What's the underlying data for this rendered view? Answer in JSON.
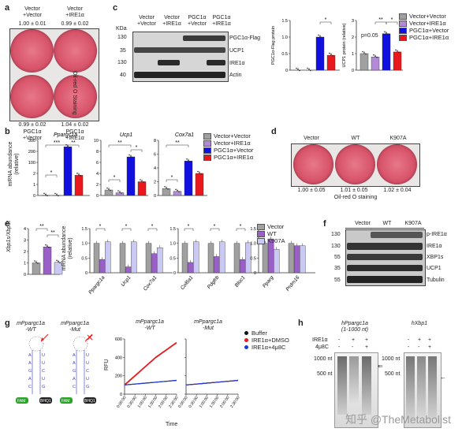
{
  "colors": {
    "vector": "#a0a0a0",
    "ire1": "#b48ad8",
    "pgc1": "#1010e0",
    "pgc1ire1": "#e8181c",
    "wt": "#9b60c8",
    "k907a": "#c9c9f3",
    "buffer": "#111111",
    "dmso": "#e8181c",
    "u4": "#1a3ad8"
  },
  "panel_a": {
    "label": "a",
    "top_groups": [
      "Vector\n+Vector",
      "Vector\n+IRE1α"
    ],
    "top_values": [
      "1.00 ± 0.01",
      "0.99 ± 0.02"
    ],
    "bottom_values": [
      "0.99 ± 0.02",
      "1.04 ± 0.02"
    ],
    "bottom_groups": [
      "PGC1α\n+Vector",
      "PGC1α\n+IRE1α"
    ],
    "side": "Oil-red O Staining"
  },
  "panel_b": {
    "label": "b",
    "ylabel": "mRNA abundance\n(relative)",
    "legend": [
      "Vector+Vector",
      "Vector+IRE1α",
      "PGC1α+Vector",
      "PGC1α+IRE1α"
    ]
  },
  "panel_c": {
    "label": "c",
    "kda": "KDa",
    "lanes": [
      "Vector\n+Vector",
      "Vector\n+IRE1α",
      "PGC1α\n+Vector",
      "PGC1α\n+IRE1α"
    ],
    "mw": [
      "130",
      "35",
      "130",
      "40"
    ],
    "bands": [
      "PGC1α-Flag",
      "UCP1",
      "IRE1α",
      "Actin"
    ],
    "pgc_ylabel": "PGC1α-Flag protein\n(relative)",
    "ucp_ylabel": "UCP1 protein (relative)",
    "pval": "p=0.05",
    "legend": [
      "Vector+Vector",
      "Vector+IRE1α",
      "PGC1α+Vector",
      "PGC1α+IRE1α"
    ]
  },
  "panel_d": {
    "label": "d",
    "groups": [
      "Vector",
      "WT",
      "K907A"
    ],
    "values": [
      "1.00 ± 0.05",
      "1.01 ± 0.05",
      "1.02 ± 0.04"
    ],
    "caption": "Oil-red O staining"
  },
  "panel_e": {
    "label": "e",
    "ylabel1": "Xbp1s/Xbp1t",
    "ylabel2": "mRNA abundance\n(relative)",
    "legend": [
      "Vector",
      "WT",
      "K907A"
    ]
  },
  "panel_f": {
    "label": "f",
    "lanes": [
      "Vector",
      "WT",
      "K907A"
    ],
    "mw": [
      "130",
      "130",
      "55",
      "35",
      "55"
    ],
    "bands": [
      "p-IRE1α",
      "IRE1α",
      "XBP1s",
      "UCP1",
      "Tubulin"
    ]
  },
  "panel_g": {
    "label": "g",
    "probe1": "mPpargc1a\n-WT",
    "probe2": "mPpargc1a\n-Mut",
    "fam": "FAM",
    "bhq": "BHQ1",
    "ylabel": "RFU",
    "xlabel": "Time",
    "title1": "mPpargc1a\n-WT",
    "title2": "mPpargc1a\n-Mut",
    "legend": [
      "Buffer",
      "IRE1α+DMSO",
      "IRE1α+4μ8C"
    ],
    "yticks": [
      "0",
      "200",
      "400",
      "600"
    ],
    "xticks": [
      "0:00:00",
      "0:30:00",
      "1:00:00",
      "1:30:00",
      "2:00:00",
      "2:30:00"
    ]
  },
  "panel_h": {
    "label": "h",
    "title1": "hPpargc1a\n(1-1000 nt)",
    "title2": "hXbp1",
    "row1": "IRE1α",
    "row2": "4μ8C",
    "gel1_signs": [
      [
        "-",
        "+",
        "+"
      ],
      [
        "-",
        "-",
        "+"
      ]
    ],
    "gel2_signs": [
      [
        "-",
        "+",
        "+"
      ],
      [
        "-",
        "-",
        "+"
      ]
    ],
    "markers1": [
      "1000 nt",
      "500 nt"
    ],
    "markers2": [
      "1000 nt",
      "500 nt"
    ]
  },
  "watermark": "知乎 @TheMetabolist",
  "chart_data": [
    {
      "type": "bar",
      "title": "Ppargc1a",
      "categories": [
        "Vector+Vector",
        "Vector+IRE1α",
        "PGC1α+Vector",
        "PGC1α+IRE1α"
      ],
      "values": [
        1,
        0.5,
        265,
        110
      ],
      "ylim": [
        0,
        300
      ],
      "yticks": [
        "0",
        "1",
        "2",
        "100",
        "200",
        "300"
      ]
    },
    {
      "type": "bar",
      "title": "Ucp1",
      "categories": [
        "Vector+Vector",
        "Vector+IRE1α",
        "PGC1α+Vector",
        "PGC1α+IRE1α"
      ],
      "values": [
        1,
        0.5,
        7,
        2.5
      ],
      "ylim": [
        0,
        10
      ],
      "yticks": [
        "0",
        "2",
        "4",
        "6",
        "8",
        "10"
      ]
    },
    {
      "type": "bar",
      "title": "Cox7a1",
      "categories": [
        "Vector+Vector",
        "Vector+IRE1α",
        "PGC1α+Vector",
        "PGC1α+IRE1α"
      ],
      "values": [
        1,
        0.6,
        5,
        3.2
      ],
      "ylim": [
        0,
        8
      ],
      "yticks": [
        "0",
        "2",
        "4",
        "6",
        "8"
      ]
    },
    {
      "type": "bar",
      "title": "",
      "categories": [
        "Vector+Vector",
        "Vector+IRE1α",
        "PGC1α+Vector",
        "PGC1α+IRE1α"
      ],
      "values": [
        0,
        0,
        1,
        0.45
      ],
      "ylim": [
        0,
        1.5
      ],
      "yticks": [
        "0",
        "0.5",
        "1.0",
        "1.5"
      ]
    },
    {
      "type": "bar",
      "title": "",
      "categories": [
        "Vector+Vector",
        "Vector+IRE1α",
        "PGC1α+Vector",
        "PGC1α+IRE1α"
      ],
      "values": [
        1,
        0.8,
        2.2,
        1.1
      ],
      "ylim": [
        0,
        3
      ],
      "yticks": [
        "0",
        "1",
        "2",
        "3"
      ]
    },
    {
      "type": "bar",
      "title": "",
      "categories": [
        "Vector",
        "WT",
        "K907A"
      ],
      "values": [
        1,
        2.4,
        1.05
      ],
      "ylim": [
        0,
        4
      ],
      "yticks": [
        "0",
        "1",
        "2",
        "3",
        "4"
      ]
    },
    {
      "type": "bar",
      "title": "",
      "groups": [
        "Ppargc1a",
        "Ucp1",
        "Cox7a1",
        "Col6a1",
        "Pdgfrb",
        "Bloc1",
        "Pparg",
        "Prdm16"
      ],
      "series": [
        {
          "name": "Vector",
          "values": [
            1,
            1,
            1,
            1,
            1,
            1,
            1,
            1
          ]
        },
        {
          "name": "WT",
          "values": [
            0.45,
            0.2,
            0.65,
            0.35,
            0.55,
            0.45,
            1.15,
            0.92
          ]
        },
        {
          "name": "K907A",
          "values": [
            1.05,
            1.05,
            0.85,
            1.05,
            1.05,
            1.02,
            0.8,
            0.92
          ]
        }
      ],
      "ylim": [
        0,
        1.5
      ],
      "yticks": [
        "0",
        "0.5",
        "1.0",
        "1.5"
      ]
    },
    {
      "type": "line",
      "title": "mPpargc1a -WT",
      "x": [
        0,
        1,
        2,
        3,
        4,
        5
      ],
      "series": [
        {
          "name": "Buffer",
          "values": [
            100,
            110,
            120,
            130,
            140,
            150
          ]
        },
        {
          "name": "IRE1α+DMSO",
          "values": [
            100,
            200,
            300,
            400,
            480,
            560
          ]
        },
        {
          "name": "IRE1α+4μ8C",
          "values": [
            100,
            110,
            120,
            130,
            140,
            150
          ]
        }
      ],
      "ylim": [
        0,
        600
      ]
    },
    {
      "type": "line",
      "title": "mPpargc1a -Mut",
      "x": [
        0,
        1,
        2,
        3,
        4,
        5
      ],
      "series": [
        {
          "name": "Buffer",
          "values": [
            100,
            110,
            120,
            130,
            140,
            150
          ]
        },
        {
          "name": "IRE1α+DMSO",
          "values": [
            100,
            110,
            120,
            130,
            140,
            150
          ]
        },
        {
          "name": "IRE1α+4μ8C",
          "values": [
            100,
            110,
            120,
            130,
            140,
            150
          ]
        }
      ],
      "ylim": [
        0,
        600
      ]
    }
  ]
}
